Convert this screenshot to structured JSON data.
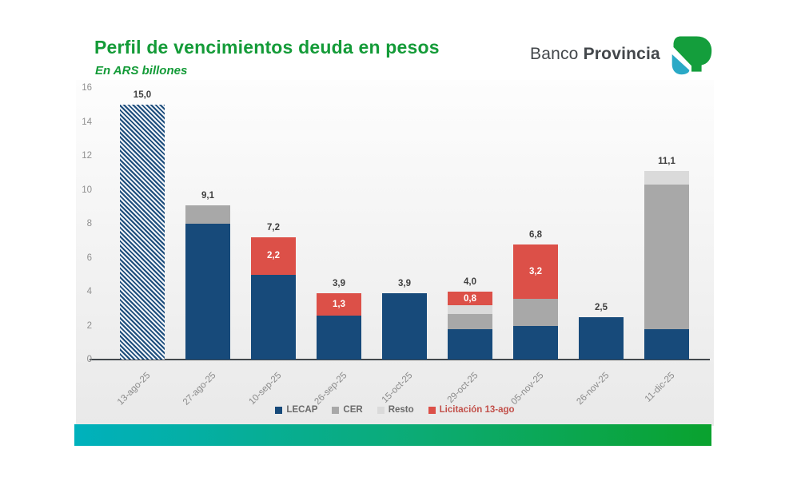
{
  "header": {
    "title": "Perfil de vencimientos deuda en pesos",
    "subtitle": "En ARS billones"
  },
  "logo": {
    "name_regular": "Banco",
    "name_bold": "Provincia",
    "mark_green": "#149e3c",
    "mark_teal": "#2aa9c6"
  },
  "colors": {
    "title_green": "#149b38",
    "lecap_blue": "#174a7a",
    "cer_gray": "#a8a8a8",
    "resto_gray": "#dadada",
    "licitacion_red": "#dc5048",
    "value_label": "#3f3f3f",
    "axis_gray": "#909090",
    "footer_teal": "#00b1bd",
    "footer_green": "#0aa22e"
  },
  "chart_data": {
    "type": "bar",
    "stacked": true,
    "title": "Perfil de vencimientos deuda en pesos",
    "subtitle_units": "En ARS billones",
    "ylim": [
      0,
      16
    ],
    "yticks": [
      0,
      2,
      4,
      6,
      8,
      10,
      12,
      14,
      16
    ],
    "grid": false,
    "legend_position": "bottom",
    "categories": [
      "13-ago-25",
      "27-ago-25",
      "10-sep-25",
      "26-sep-25",
      "15-oct-25",
      "29-oct-25",
      "05-nov-25",
      "26-nov-25",
      "11-dic-25"
    ],
    "series": [
      {
        "name": "13-ago-25",
        "style": "hatch",
        "color": "#1d4d7c",
        "values": [
          15.0,
          0,
          0,
          0,
          0,
          0,
          0,
          0,
          0
        ]
      },
      {
        "name": "LECAP",
        "color": "#174a7a",
        "values": [
          0,
          8.0,
          5.0,
          2.6,
          3.9,
          1.8,
          2.0,
          2.5,
          1.8
        ]
      },
      {
        "name": "CER",
        "color": "#a8a8a8",
        "values": [
          0,
          1.1,
          0,
          0,
          0,
          0.9,
          1.6,
          0,
          8.5
        ]
      },
      {
        "name": "Resto",
        "color": "#dadada",
        "values": [
          0,
          0,
          0,
          0,
          0,
          0.5,
          0,
          0,
          0.8
        ]
      },
      {
        "name": "Licitación 13-ago",
        "color": "#dc5048",
        "values": [
          0,
          0,
          2.2,
          1.3,
          0,
          0.8,
          3.2,
          0,
          0
        ],
        "inside_labels": [
          "",
          "",
          "2,2",
          "1,3",
          "",
          "0,8",
          "3,2",
          "",
          ""
        ]
      }
    ],
    "totals": [
      15.0,
      9.1,
      7.2,
      3.9,
      3.9,
      4.0,
      6.8,
      2.5,
      11.1
    ],
    "total_labels": [
      "15,0",
      "9,1",
      "7,2",
      "3,9",
      "3,9",
      "4,0",
      "6,8",
      "2,5",
      "11,1"
    ],
    "legend": [
      {
        "label": "LECAP",
        "color": "#174a7a",
        "text_color": "#6a6a6a"
      },
      {
        "label": "CER",
        "color": "#a8a8a8",
        "text_color": "#6a6a6a"
      },
      {
        "label": "Resto",
        "color": "#dadada",
        "text_color": "#6a6a6a"
      },
      {
        "label": "Licitación 13-ago",
        "color": "#dc5048",
        "text_color": "#c2504a"
      }
    ]
  }
}
